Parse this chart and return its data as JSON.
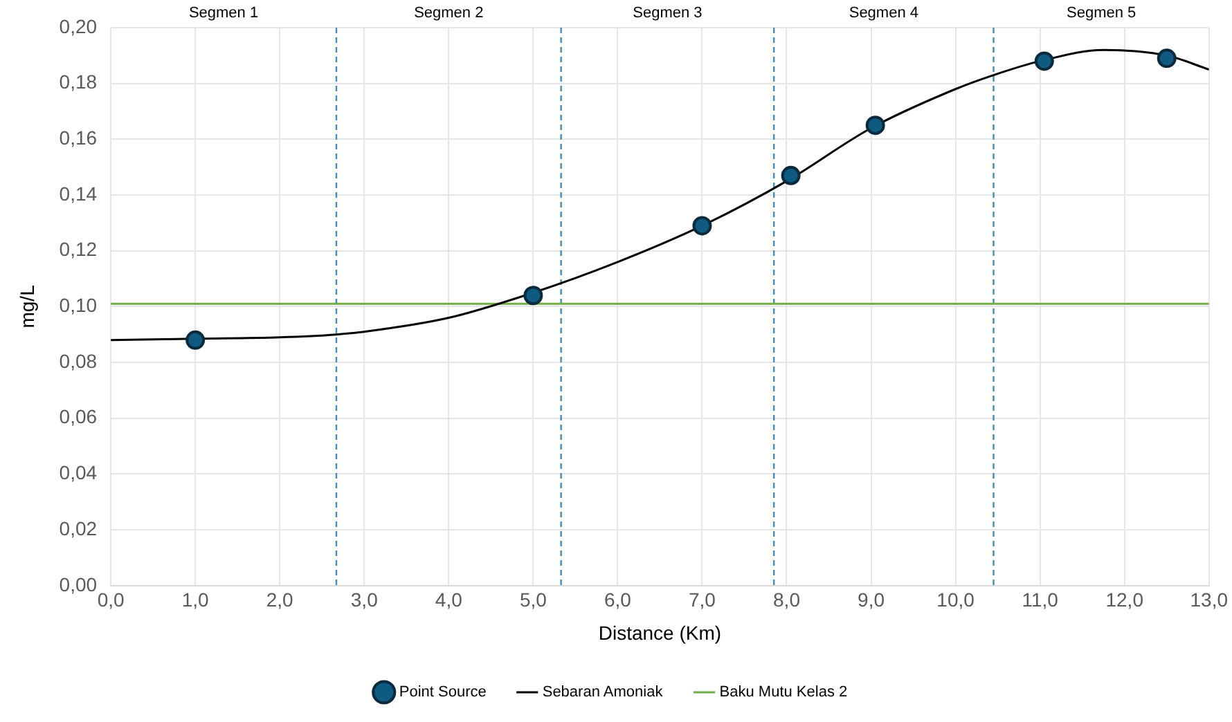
{
  "chart_data": {
    "type": "scatter",
    "xlabel": "Distance (Km)",
    "ylabel": "mg/L",
    "xlim": [
      0,
      13
    ],
    "xticks": [
      {
        "value": 0,
        "label": "0,0"
      },
      {
        "value": 1,
        "label": "1,0"
      },
      {
        "value": 2,
        "label": "2,0"
      },
      {
        "value": 3,
        "label": "3,0"
      },
      {
        "value": 4,
        "label": "4,0"
      },
      {
        "value": 5,
        "label": "5,0"
      },
      {
        "value": 6,
        "label": "6,0"
      },
      {
        "value": 7,
        "label": "7,0"
      },
      {
        "value": 8,
        "label": "8,0"
      },
      {
        "value": 9,
        "label": "9,0"
      },
      {
        "value": 10,
        "label": "10,0"
      },
      {
        "value": 11,
        "label": "11,0"
      },
      {
        "value": 12,
        "label": "12,0"
      },
      {
        "value": 13,
        "label": "13,0"
      }
    ],
    "ylim": [
      0,
      0.2
    ],
    "yticks": [
      {
        "value": 0,
        "label": "0,00"
      },
      {
        "value": 0.02,
        "label": "0,02"
      },
      {
        "value": 0.04,
        "label": "0,04"
      },
      {
        "value": 0.06,
        "label": "0,06"
      },
      {
        "value": 0.08,
        "label": "0,08"
      },
      {
        "value": 0.1,
        "label": "0,10"
      },
      {
        "value": 0.12,
        "label": "0,12"
      },
      {
        "value": 0.14,
        "label": "0,14"
      },
      {
        "value": 0.16,
        "label": "0,16"
      },
      {
        "value": 0.18,
        "label": "0,18"
      },
      {
        "value": 0.2,
        "label": "0,20"
      }
    ],
    "grid": true,
    "legend": "bottom",
    "series": [
      {
        "name": "Point Source",
        "marker": "circle",
        "color": "#0f5a80",
        "x": [
          1.0,
          5.0,
          7.0,
          8.05,
          9.05,
          11.05,
          12.5
        ],
        "values": [
          0.088,
          0.104,
          0.129,
          0.147,
          0.165,
          0.188,
          0.189
        ]
      },
      {
        "name": "Sebaran Amoniak",
        "type": "line",
        "marker": "none",
        "color": "#000000",
        "x": [
          0,
          1,
          2,
          2.67,
          3,
          4,
          5,
          6,
          7,
          8,
          9,
          10,
          10.45,
          11,
          11.75,
          12.5,
          13
        ],
        "values": [
          0.088,
          0.0885,
          0.089,
          0.09,
          0.091,
          0.096,
          0.105,
          0.116,
          0.129,
          0.145,
          0.164,
          0.178,
          0.183,
          0.188,
          0.192,
          0.19,
          0.185
        ]
      }
    ],
    "ref_lines": [
      {
        "axis": "y",
        "value": 0.101,
        "label": "Baku Mutu Kelas 2",
        "color": "#70ad47",
        "line_style": "solid"
      },
      {
        "axis": "x",
        "value": 2.67,
        "label": null,
        "color": "#4a8ab5",
        "line_style": "dashed"
      },
      {
        "axis": "x",
        "value": 5.33,
        "label": null,
        "color": "#4a8ab5",
        "line_style": "dashed"
      },
      {
        "axis": "x",
        "value": 7.85,
        "label": null,
        "color": "#4a8ab5",
        "line_style": "dashed"
      },
      {
        "axis": "x",
        "value": 10.45,
        "label": null,
        "color": "#4a8ab5",
        "line_style": "dashed"
      }
    ],
    "annotations": [
      "Segmen 1",
      "Segmen 2",
      "Segmen 3",
      "Segmen 4",
      "Segmen 5"
    ]
  }
}
